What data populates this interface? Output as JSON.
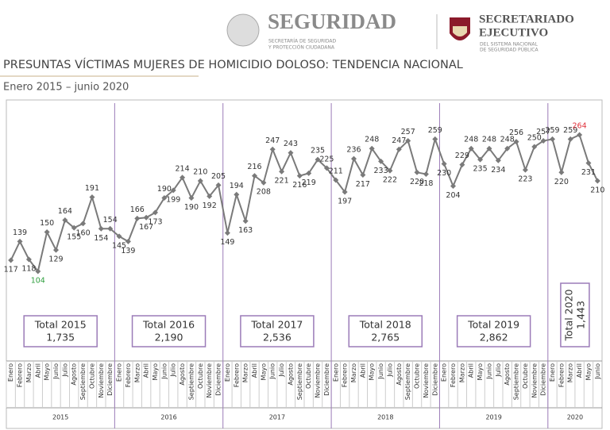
{
  "header": {
    "brand": "SEGURIDAD",
    "brand_sub_1": "SECRETARÍA DE SEGURIDAD",
    "brand_sub_2": "Y PROTECCIÓN CIUDADANA",
    "secretariat_1": "SECRETARIADO",
    "secretariat_2": "EJECUTIVO",
    "secretariat_sub_1": "DEL SISTEMA NACIONAL",
    "secretariat_sub_2": "DE SEGURIDAD PÚBLICA"
  },
  "chart_data": {
    "type": "line",
    "title": "PRESUNTAS VÍCTIMAS MUJERES DE HOMICIDIO DOLOSO: TENDENCIA NACIONAL",
    "subtitle": "Enero 2015 – junio 2020",
    "categories": [
      "Enero",
      "Febrero",
      "Marzo",
      "Abril",
      "Mayo",
      "Junio",
      "Julio",
      "Agosto",
      "Septiembre",
      "Octubre",
      "Noviembre",
      "Diciembre",
      "Enero",
      "Febrero",
      "Marzo",
      "Abril",
      "Mayo",
      "Junio",
      "Julio",
      "Agosto",
      "Septiembre",
      "Octubre",
      "Noviembre",
      "Diciembre",
      "Enero",
      "Febrero",
      "Marzo",
      "Abril",
      "Mayo",
      "Junio",
      "Julio",
      "Agosto",
      "Septiembre",
      "Octubre",
      "Noviembre",
      "Diciembre",
      "Enero",
      "Febrero",
      "Marzo",
      "Abril",
      "Mayo",
      "Junio",
      "Julio",
      "Agosto",
      "Septiembre",
      "Octubre",
      "Noviembre",
      "Diciembre",
      "Enero",
      "Febrero",
      "Marzo",
      "Abril",
      "Mayo",
      "Junio",
      "Julio",
      "Agosto",
      "Septiembre",
      "Octubre",
      "Noviembre",
      "Diciembre",
      "Enero",
      "Febrero",
      "Marzo",
      "Abril",
      "Mayo",
      "Junio"
    ],
    "values": [
      117,
      139,
      118,
      104,
      150,
      129,
      164,
      155,
      160,
      191,
      154,
      154,
      145,
      139,
      166,
      167,
      173,
      190,
      199,
      214,
      190,
      210,
      192,
      205,
      149,
      194,
      163,
      216,
      208,
      247,
      221,
      243,
      216,
      219,
      235,
      225,
      211,
      197,
      236,
      217,
      248,
      233,
      222,
      247,
      257,
      220,
      218,
      259,
      230,
      204,
      229,
      248,
      235,
      248,
      234,
      248,
      256,
      223,
      250,
      257,
      259,
      220,
      259,
      264,
      231,
      210
    ],
    "color": "#7a7a7a",
    "min_label_color": "#2e9e3e",
    "max_label_color": "#e0303a",
    "divider_color": "#9b7bb8",
    "groups": [
      "2015",
      "2016",
      "2017",
      "2018",
      "2019",
      "2020"
    ],
    "totals": {
      "names": [
        "Total 2015",
        "Total 2016",
        "Total 2017",
        "Total 2018",
        "Total 2019",
        "Total 2020"
      ],
      "values": [
        1735,
        2190,
        2536,
        2765,
        2862,
        1443
      ],
      "value_labels": [
        "1,735",
        "2,190",
        "2,536",
        "2,765",
        "2,862",
        "1,443"
      ]
    }
  }
}
